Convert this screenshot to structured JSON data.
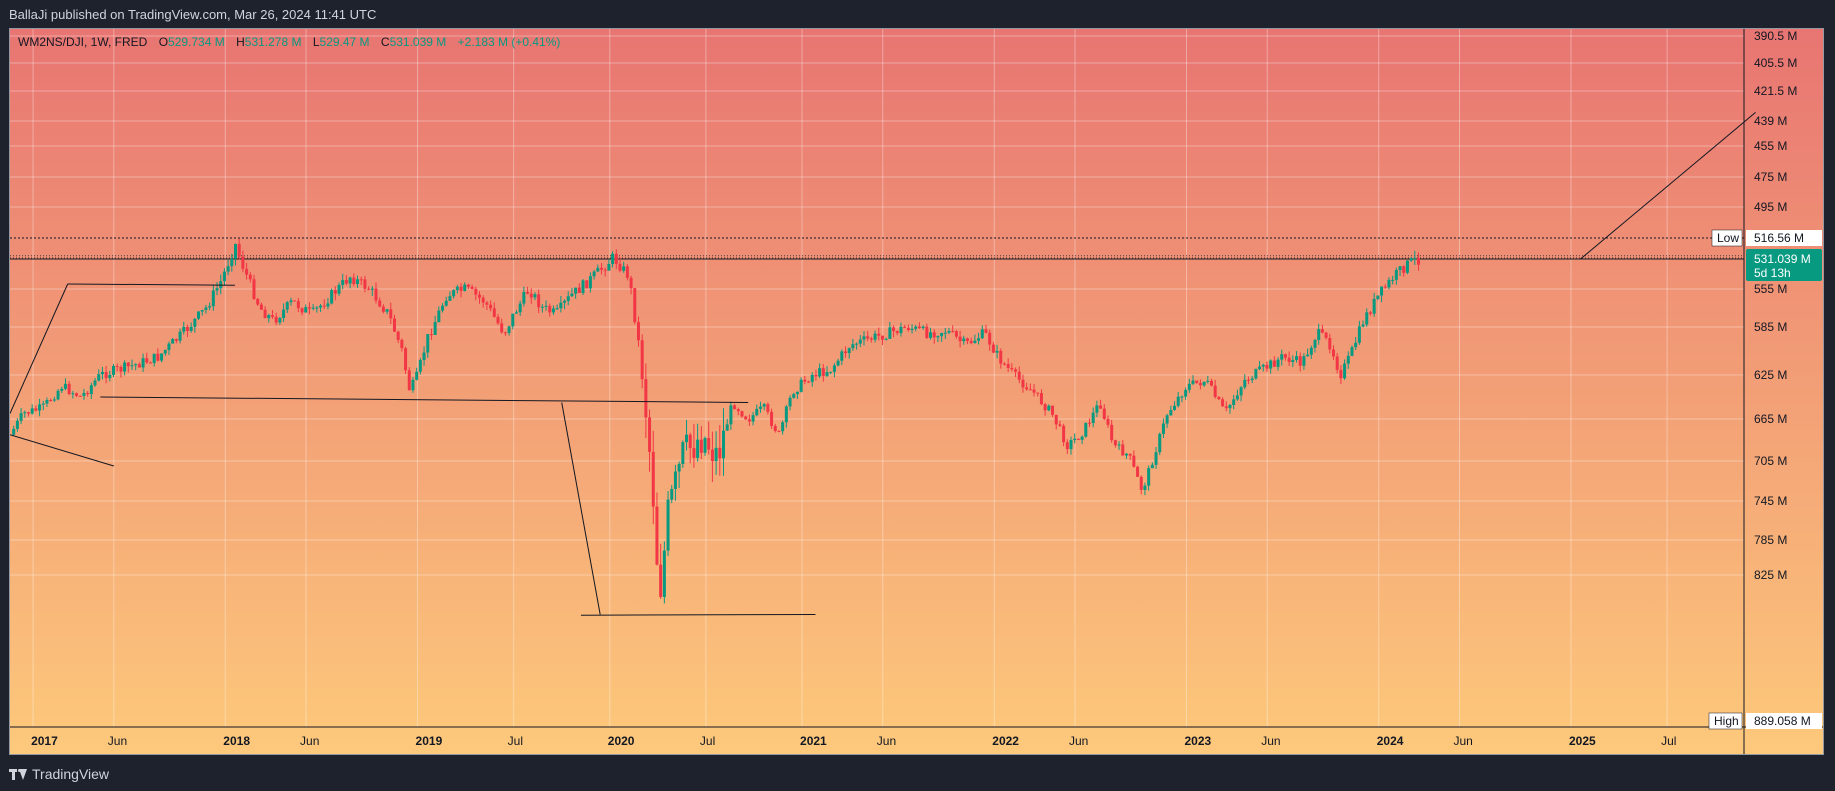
{
  "header": {
    "publish_text": "BallaJi published on TradingView.com, Mar 26, 2024 11:41 UTC"
  },
  "legend": {
    "symbol": "WM2NS/DJI, 1W, FRED",
    "open_label": "O",
    "open_value": "529.734 M",
    "high_label": "H",
    "high_value": "531.278 M",
    "low_label": "L",
    "low_value": "529.47 M",
    "close_label": "C",
    "close_value": "531.039 M",
    "change_value": "+2.183 M (+0.41%)"
  },
  "footer": {
    "brand": "TradingView",
    "logo_icon": "tradingview-logo-icon"
  },
  "chart_data": {
    "type": "candlestick",
    "scale": "inverted",
    "y_unit": "M",
    "grid": true,
    "background_gradient": [
      "#e87572",
      "#fdc97b"
    ],
    "colors": {
      "up": "#089981",
      "down": "#f23645",
      "line": "#131722",
      "label_bg": "#ffffff"
    },
    "y_ticks": [
      {
        "value": 390.5,
        "label": "390.5 M"
      },
      {
        "value": 405.5,
        "label": "405.5 M"
      },
      {
        "value": 421.5,
        "label": "421.5 M"
      },
      {
        "value": 439,
        "label": "439 M"
      },
      {
        "value": 455,
        "label": "455 M"
      },
      {
        "value": 475,
        "label": "475 M"
      },
      {
        "value": 495,
        "label": "495 M"
      },
      {
        "value": 555,
        "label": "555 M"
      },
      {
        "value": 585,
        "label": "585 M"
      },
      {
        "value": 625,
        "label": "625 M"
      },
      {
        "value": 665,
        "label": "665 M"
      },
      {
        "value": 705,
        "label": "705 M"
      },
      {
        "value": 745,
        "label": "745 M"
      },
      {
        "value": 785,
        "label": "785 M"
      },
      {
        "value": 825,
        "label": "825 M"
      }
    ],
    "x_ticks": [
      {
        "label": "2017",
        "x": 2017.0,
        "bold": true
      },
      {
        "label": "Jun",
        "x": 2017.42,
        "bold": false
      },
      {
        "label": "2018",
        "x": 2018.0,
        "bold": true
      },
      {
        "label": "Jun",
        "x": 2018.42,
        "bold": false
      },
      {
        "label": "2019",
        "x": 2019.0,
        "bold": true
      },
      {
        "label": "Jul",
        "x": 2019.5,
        "bold": false
      },
      {
        "label": "2020",
        "x": 2020.0,
        "bold": true
      },
      {
        "label": "Jul",
        "x": 2020.5,
        "bold": false
      },
      {
        "label": "2021",
        "x": 2021.0,
        "bold": true
      },
      {
        "label": "Jun",
        "x": 2021.42,
        "bold": false
      },
      {
        "label": "2022",
        "x": 2022.0,
        "bold": true
      },
      {
        "label": "Jun",
        "x": 2022.42,
        "bold": false
      },
      {
        "label": "2023",
        "x": 2023.0,
        "bold": true
      },
      {
        "label": "Jun",
        "x": 2023.42,
        "bold": false
      },
      {
        "label": "2024",
        "x": 2024.0,
        "bold": true
      },
      {
        "label": "Jun",
        "x": 2024.42,
        "bold": false
      },
      {
        "label": "2025",
        "x": 2025.0,
        "bold": true
      },
      {
        "label": "Jul",
        "x": 2025.5,
        "bold": false
      }
    ],
    "x_range": [
      2016.88,
      2025.9
    ],
    "price_labels": {
      "low_label": "Low",
      "low_value": "516.56 M",
      "low_price": 516.56,
      "high_label": "High",
      "high_value": "889.058 M",
      "high_price": 889.058,
      "last_value": "531.039 M",
      "countdown": "5d 13h",
      "last_price": 531.039
    },
    "path": [
      [
        2016.88,
        680
      ],
      [
        2016.95,
        660
      ],
      [
        2017.05,
        655
      ],
      [
        2017.15,
        635
      ],
      [
        2017.25,
        645
      ],
      [
        2017.35,
        625
      ],
      [
        2017.5,
        618
      ],
      [
        2017.65,
        610
      ],
      [
        2017.78,
        590
      ],
      [
        2017.9,
        570
      ],
      [
        2017.98,
        548
      ],
      [
        2018.05,
        520
      ],
      [
        2018.1,
        540
      ],
      [
        2018.18,
        570
      ],
      [
        2018.25,
        580
      ],
      [
        2018.35,
        565
      ],
      [
        2018.45,
        575
      ],
      [
        2018.55,
        560
      ],
      [
        2018.65,
        545
      ],
      [
        2018.75,
        555
      ],
      [
        2018.85,
        575
      ],
      [
        2018.92,
        605
      ],
      [
        2018.96,
        640
      ],
      [
        2019.0,
        625
      ],
      [
        2019.05,
        595
      ],
      [
        2019.15,
        560
      ],
      [
        2019.25,
        555
      ],
      [
        2019.35,
        565
      ],
      [
        2019.45,
        590
      ],
      [
        2019.5,
        575
      ],
      [
        2019.58,
        555
      ],
      [
        2019.65,
        570
      ],
      [
        2019.72,
        575
      ],
      [
        2019.8,
        560
      ],
      [
        2019.88,
        550
      ],
      [
        2019.95,
        540
      ],
      [
        2020.02,
        530
      ],
      [
        2020.1,
        545
      ],
      [
        2020.17,
        620
      ],
      [
        2020.22,
        720
      ],
      [
        2020.26,
        855
      ],
      [
        2020.3,
        760
      ],
      [
        2020.38,
        700
      ],
      [
        2020.48,
        680
      ],
      [
        2020.56,
        700
      ],
      [
        2020.64,
        650
      ],
      [
        2020.72,
        665
      ],
      [
        2020.8,
        655
      ],
      [
        2020.88,
        680
      ],
      [
        2020.95,
        640
      ],
      [
        2021.05,
        625
      ],
      [
        2021.15,
        620
      ],
      [
        2021.25,
        600
      ],
      [
        2021.35,
        595
      ],
      [
        2021.45,
        590
      ],
      [
        2021.55,
        585
      ],
      [
        2021.65,
        590
      ],
      [
        2021.75,
        588
      ],
      [
        2021.85,
        600
      ],
      [
        2021.95,
        590
      ],
      [
        2022.02,
        610
      ],
      [
        2022.1,
        625
      ],
      [
        2022.2,
        640
      ],
      [
        2022.3,
        660
      ],
      [
        2022.38,
        690
      ],
      [
        2022.45,
        680
      ],
      [
        2022.55,
        650
      ],
      [
        2022.62,
        690
      ],
      [
        2022.7,
        700
      ],
      [
        2022.77,
        735
      ],
      [
        2022.83,
        700
      ],
      [
        2022.9,
        660
      ],
      [
        2023.0,
        635
      ],
      [
        2023.1,
        630
      ],
      [
        2023.2,
        660
      ],
      [
        2023.3,
        630
      ],
      [
        2023.4,
        620
      ],
      [
        2023.5,
        610
      ],
      [
        2023.6,
        615
      ],
      [
        2023.68,
        590
      ],
      [
        2023.75,
        600
      ],
      [
        2023.8,
        625
      ],
      [
        2023.85,
        610
      ],
      [
        2023.92,
        580
      ],
      [
        2024.0,
        560
      ],
      [
        2024.08,
        545
      ],
      [
        2024.15,
        535
      ],
      [
        2024.21,
        531
      ]
    ],
    "hlines": [
      516.56,
      528.6,
      529.8,
      530.7,
      531.039
    ],
    "drawings": [
      {
        "from": [
          2016.88,
          660
        ],
        "to": [
          2017.18,
          551
        ]
      },
      {
        "from": [
          2017.18,
          551
        ],
        "to": [
          2018.05,
          552
        ]
      },
      {
        "from": [
          2016.88,
          680
        ],
        "to": [
          2017.42,
          710
        ]
      },
      {
        "from": [
          2017.35,
          645
        ],
        "to": [
          2020.72,
          650
        ]
      },
      {
        "from": [
          2019.75,
          650
        ],
        "to": [
          2019.95,
          880
        ]
      },
      {
        "from": [
          2019.85,
          881
        ],
        "to": [
          2021.07,
          880
        ]
      },
      {
        "from": [
          2025.05,
          531
        ],
        "to": [
          2025.96,
          434
        ]
      }
    ]
  }
}
